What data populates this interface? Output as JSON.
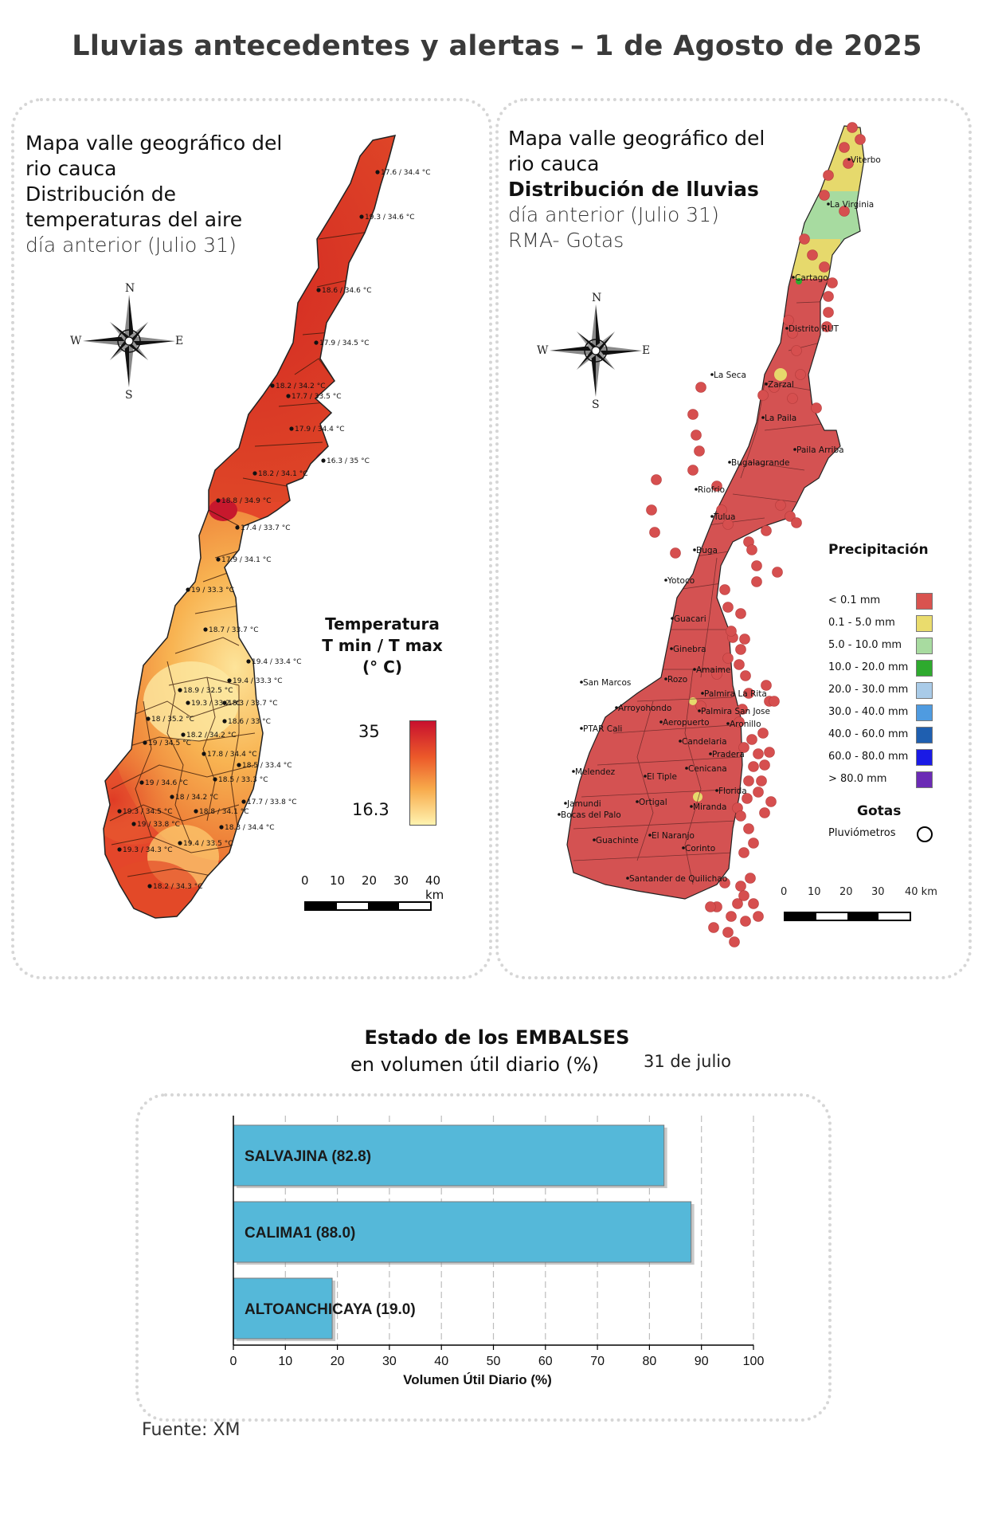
{
  "page": {
    "title": "Lluvias antecedentes y alertas – 1 de Agosto de 2025",
    "source": "Fuente: XM"
  },
  "temp_panel": {
    "title_lines": [
      {
        "text": "Mapa valle geográfico del",
        "weight": "bold"
      },
      {
        "text": "rio cauca",
        "weight": "bold"
      },
      {
        "text": "Distribución de",
        "weight": "bold"
      },
      {
        "text": "temperaturas del aire",
        "weight": "bold"
      },
      {
        "text": "día anterior (Julio 31)",
        "weight": "light"
      }
    ],
    "compass": {
      "n": "N",
      "s": "S",
      "e": "E",
      "w": "W"
    },
    "legend": {
      "title_line1": "Temperatura",
      "title_line2": "T min / T max",
      "title_line3": "(° C)",
      "max": "35",
      "min": "16.3",
      "color_high": "#c8102e",
      "color_low": "#fff3b0"
    },
    "scale": {
      "ticks": [
        "0",
        "10",
        "20",
        "30",
        "40 km"
      ]
    },
    "stations": [
      "17.6 / 34.4 °C",
      "19.3 / 34.6 °C",
      "18.6 / 34.6 °C",
      "17.9 / 34.5 °C",
      "18.2 / 34.2 °C",
      "17.7 / 33.5 °C",
      "17.9 / 34.4 °C",
      "16.3 / 35 °C",
      "18.2 / 34.1 °C",
      "18.8 / 34.9 °C",
      "17.4 / 33.7 °C",
      "17.9 / 34.1 °C",
      "19 / 33.3 °C",
      "18.7 / 33.7 °C",
      "19.4 / 33.4 °C",
      "19.4 / 33.3 °C",
      "18.9 / 32.5 °C",
      "19.3 / 33.2 °C",
      "18.3 / 33.7 °C",
      "18 / 35.2 °C",
      "18.6 / 33 °C",
      "18.2 / 34.2 °C",
      "19 / 34.5 °C",
      "17.8 / 34.4 °C",
      "18.5 / 33.4 °C",
      "18.5 / 33.3 °C",
      "19 / 34.6 °C",
      "18 / 34.2 °C",
      "17.7 / 33.8 °C",
      "18.8 / 34.1 °C",
      "19.3 / 34.5 °C",
      "19 / 33.8 °C",
      "18.3 / 34.4 °C",
      "19.4 / 33.5 °C",
      "19.3 / 34.3 °C",
      "18.2 / 34.3 °C"
    ]
  },
  "rain_panel": {
    "title_lines": [
      {
        "text": "Mapa valle geográfico del",
        "weight": "bold"
      },
      {
        "text": "rio cauca",
        "weight": "bold"
      },
      {
        "text": "Distribución de lluvias",
        "weight": "heavy"
      },
      {
        "text": "día anterior (Julio 31)",
        "weight": "light"
      },
      {
        "text": "RMA- Gotas",
        "weight": "light"
      }
    ],
    "compass": {
      "n": "N",
      "s": "S",
      "e": "E",
      "w": "W"
    },
    "towns": [
      "Viterbo",
      "La Virginia",
      "Cartago",
      "Distrito RUT",
      "La Seca",
      "Zarzal",
      "La Paila",
      "Paila Arriba",
      "Bugalagrande",
      "Riofrio",
      "Tulua",
      "Buga",
      "Yotoco",
      "Guacari",
      "Ginebra",
      "Amaime",
      "San Marcos",
      "Rozo",
      "Palmira La Rita",
      "Arroyohondo",
      "Palmira San Jose",
      "Aeropuerto",
      "Aronillo",
      "PTAR Cali",
      "Candelaria",
      "Pradera",
      "Cenicana",
      "Melendez",
      "El Tiple",
      "Florida",
      "Jamundi",
      "Bocas del Palo",
      "Ortigal",
      "Miranda",
      "El Naranjo",
      "Guachinte",
      "Corinto",
      "Santander de Quilichao"
    ],
    "legend": {
      "title": "Precipitación",
      "items": [
        {
          "label": "< 0.1 mm",
          "color": "#d9534f"
        },
        {
          "label": "0.1 - 5.0 mm",
          "color": "#eadc6d"
        },
        {
          "label": "5.0 - 10.0 mm",
          "color": "#a8dba0"
        },
        {
          "label": "10.0 - 20.0 mm",
          "color": "#2eaa2e"
        },
        {
          "label": "20.0 - 30.0 mm",
          "color": "#a9cbe8"
        },
        {
          "label": "30.0 - 40.0 mm",
          "color": "#4f9be0"
        },
        {
          "label": "40.0 - 60.0 mm",
          "color": "#1f5fb0"
        },
        {
          "label": "60.0 - 80.0 mm",
          "color": "#1a1ae6"
        },
        {
          "label": "> 80.0 mm",
          "color": "#6b2bb5"
        }
      ],
      "gotas_title": "Gotas",
      "gotas_item": "Pluviómetros"
    },
    "scale": {
      "ticks": [
        "0",
        "10",
        "20",
        "30",
        "40 km"
      ]
    }
  },
  "reservoirs": {
    "title": "Estado de los EMBALSES",
    "subtitle": "en volumen útil diario (%)",
    "date": "31 de julio"
  },
  "chart_data": {
    "type": "bar",
    "orientation": "horizontal",
    "categories": [
      "SALVAJINA",
      "CALIMA1",
      "ALTOANCHICAYA"
    ],
    "bar_labels": [
      "SALVAJINA (82.8)",
      "CALIMA1 (88.0)",
      "ALTOANCHICAYA (19.0)"
    ],
    "values": [
      82.8,
      88.0,
      19.0
    ],
    "xlabel": "Volumen Útil Diario (%)",
    "xlim": [
      0,
      100
    ],
    "x_ticks": [
      "0",
      "10",
      "20",
      "30",
      "40",
      "50",
      "60",
      "70",
      "80",
      "90",
      "100"
    ],
    "bar_color": "#55b8d9",
    "grid": "vertical dashed"
  }
}
